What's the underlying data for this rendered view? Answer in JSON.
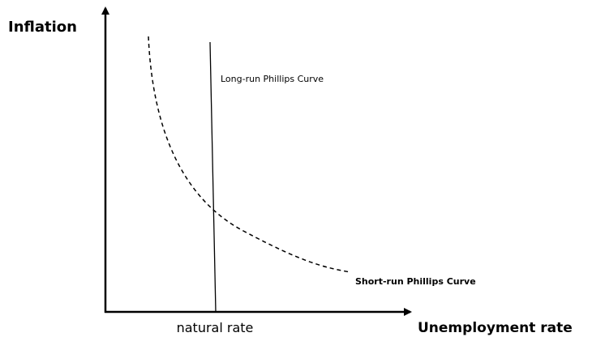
{
  "axes": {
    "y_label": "Inflation",
    "x_label": "Unemployment rate",
    "x_marker": "natural rate"
  },
  "curves": [
    {
      "label": "Long-run Phillips Curve"
    },
    {
      "label": "Short-run Phillips Curve"
    }
  ]
}
